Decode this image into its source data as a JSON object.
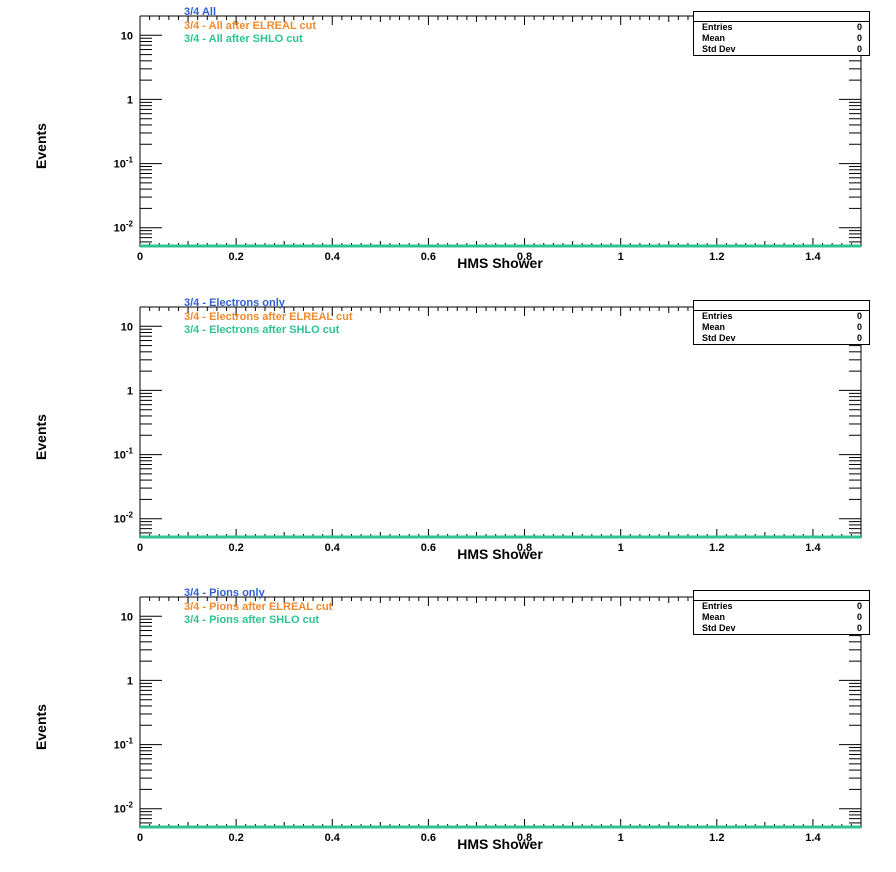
{
  "colors": {
    "series1": "#2f5fd8",
    "series2": "#f08a2c",
    "series3": "#2ec490",
    "axis": "#000000"
  },
  "stats_labels": [
    "Entries",
    "Mean",
    "Std Dev"
  ],
  "chart_data": [
    {
      "type": "line",
      "xlabel": "HMS Shower",
      "ylabel": "Events",
      "xlim": [
        0,
        1.5
      ],
      "ylim": [
        0.005,
        20
      ],
      "yscale": "log",
      "xticks": [
        "0",
        "0.2",
        "0.4",
        "0.6",
        "0.8",
        "1",
        "1.2",
        "1.4"
      ],
      "series": [
        {
          "name": "3/4 All",
          "values": []
        },
        {
          "name": "3/4 - All after ELREAL cut",
          "values": []
        },
        {
          "name": "3/4 - All after SHLO cut",
          "values": []
        }
      ],
      "stats": {
        "Entries": "0",
        "Mean": "0",
        "Std Dev": "0"
      },
      "grid": false,
      "legend_position": "top-left"
    },
    {
      "type": "line",
      "xlabel": "HMS Shower",
      "ylabel": "Events",
      "xlim": [
        0,
        1.5
      ],
      "ylim": [
        0.005,
        20
      ],
      "yscale": "log",
      "xticks": [
        "0",
        "0.2",
        "0.4",
        "0.6",
        "0.8",
        "1",
        "1.2",
        "1.4"
      ],
      "series": [
        {
          "name": "3/4 - Electrons only",
          "values": []
        },
        {
          "name": "3/4 - Electrons after ELREAL cut",
          "values": []
        },
        {
          "name": "3/4 - Electrons after SHLO cut",
          "values": []
        }
      ],
      "stats": {
        "Entries": "0",
        "Mean": "0",
        "Std Dev": "0"
      },
      "grid": false,
      "legend_position": "top-left"
    },
    {
      "type": "line",
      "xlabel": "HMS Shower",
      "ylabel": "Events",
      "xlim": [
        0,
        1.5
      ],
      "ylim": [
        0.005,
        20
      ],
      "yscale": "log",
      "xticks": [
        "0",
        "0.2",
        "0.4",
        "0.6",
        "0.8",
        "1",
        "1.2",
        "1.4"
      ],
      "series": [
        {
          "name": "3/4 - Pions only",
          "values": []
        },
        {
          "name": "3/4 - Pions after ELREAL cut",
          "values": []
        },
        {
          "name": "3/4 - Pions after SHLO cut",
          "values": []
        }
      ],
      "stats": {
        "Entries": "0",
        "Mean": "0",
        "Std Dev": "0"
      },
      "grid": false,
      "legend_position": "top-left"
    }
  ]
}
